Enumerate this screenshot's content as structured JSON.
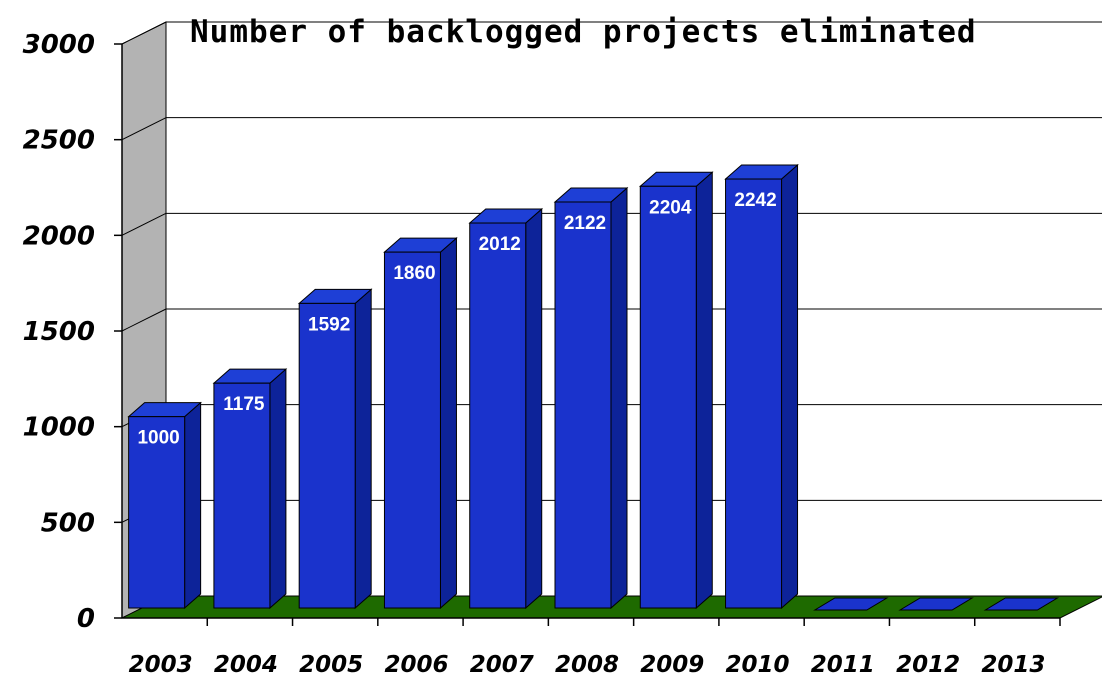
{
  "chart_data": {
    "type": "bar",
    "title": "Number of backlogged projects eliminated",
    "xlabel": "",
    "ylabel": "",
    "categories": [
      "2003",
      "2004",
      "2005",
      "2006",
      "2007",
      "2008",
      "2009",
      "2010",
      "2011",
      "2012",
      "2013"
    ],
    "values": [
      1000,
      1175,
      1592,
      1860,
      2012,
      2122,
      2204,
      2242,
      0,
      0,
      0
    ],
    "data_labels": [
      "1000",
      "1175",
      "1592",
      "1860",
      "2012",
      "2122",
      "2204",
      "2242",
      "",
      "",
      ""
    ],
    "ylim": [
      0,
      3000
    ],
    "yticks": [
      "0",
      "500",
      "1000",
      "1500",
      "2000",
      "2500",
      "3000"
    ],
    "grid": true,
    "style": "3d",
    "colors": {
      "bar_front": "#1a33cc",
      "bar_side": "#0d2399",
      "bar_top": "#1e3fd6",
      "floor": "#1e6a00",
      "left_wall": "#b3b3b3",
      "back_wall": "#ffffff"
    }
  }
}
